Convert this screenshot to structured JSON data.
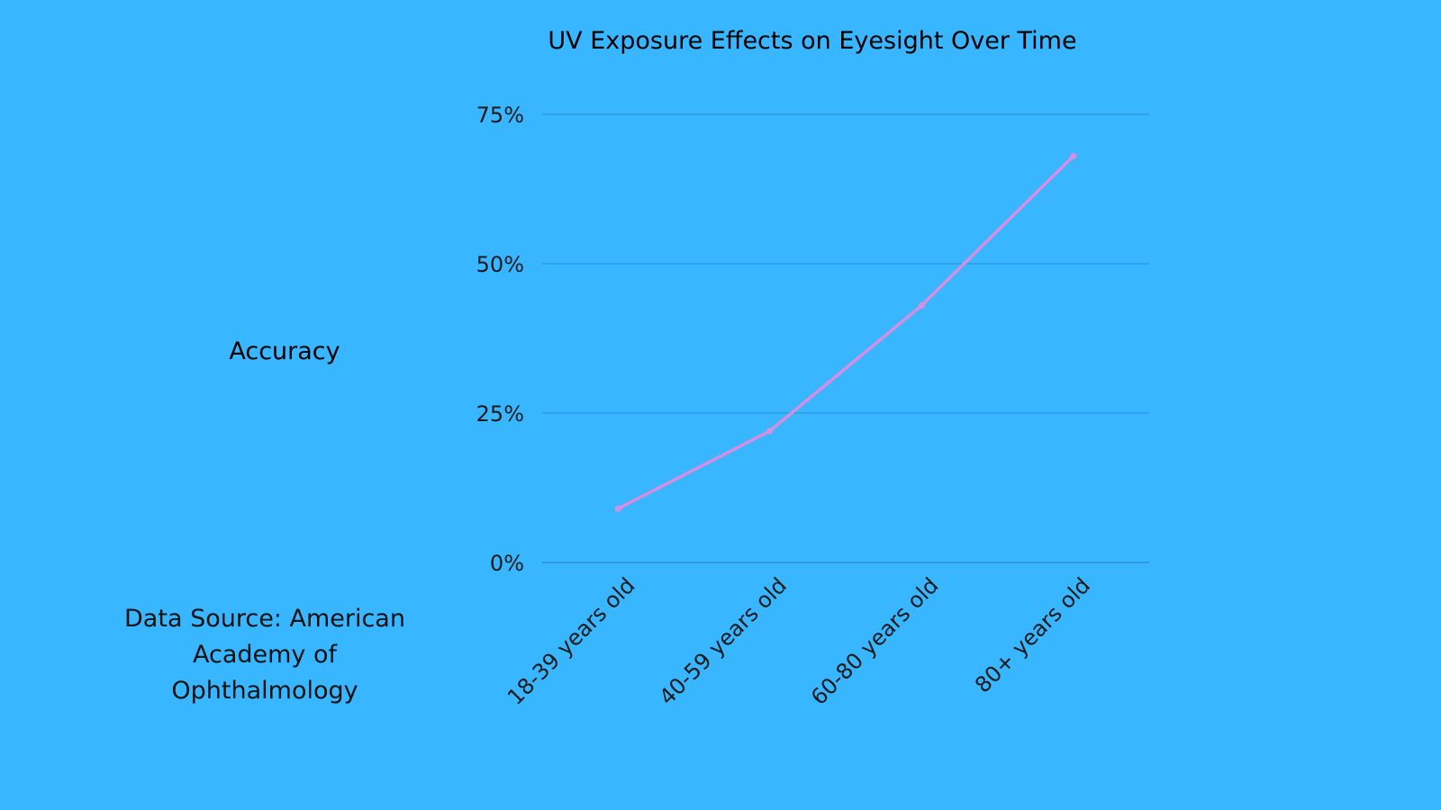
{
  "chart_data": {
    "type": "line",
    "title": "UV Exposure Effects on Eyesight Over Time",
    "xlabel": "",
    "ylabel": "Accuracy",
    "categories": [
      "18-39 years old",
      "40-59 years old",
      "60-80 years old",
      "80+ years old"
    ],
    "series": [
      {
        "values": [
          9,
          22,
          43,
          68
        ]
      }
    ],
    "y_ticks": [
      "0%",
      "25%",
      "50%",
      "75%"
    ],
    "ylim": [
      0,
      75
    ],
    "grid": true,
    "legend": "none"
  },
  "source_note": "Data Source: American Academy of Ophthalmology",
  "colors": {
    "background": "#38b6ff",
    "line": "#d88ee0",
    "grid": "#2a8fd0",
    "text": "#111111"
  }
}
